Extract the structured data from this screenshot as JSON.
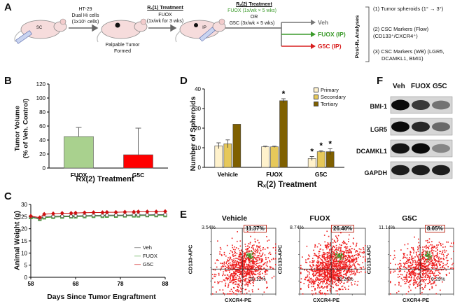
{
  "panels": {
    "a": "A",
    "b": "B",
    "c": "C",
    "d": "D",
    "e": "E",
    "f": "F"
  },
  "panelA": {
    "mouse1_label": "SC",
    "mouse3_label": "IP",
    "cells_line1": "HT-29",
    "cells_line2": "Dual Hi cells",
    "cells_line3": "(1x10⁵ cells)",
    "tumor_line1": "Palpable Tumor",
    "tumor_line2": "Formed",
    "rx1_title": "Rₓ(1) Treatment",
    "rx1_drug": "FUOX",
    "rx1_dose": "(1x/wk for 3 wks)",
    "rx2_title": "Rₓ(2) Treatment",
    "rx2_fuox": "FUOX (1x/wk × 5 wks)",
    "rx2_or": "OR",
    "rx2_g5c": "G5C (3x/wk × 5 wks)",
    "arm_veh": "Veh",
    "arm_fuox": "FUOX (IP)",
    "arm_g5c": "G5C (IP)",
    "post_rx": "Post-Rₓ Analyses",
    "analysis1": "(1) Tumor spheroids (1° → 3°)",
    "analysis2a": "(2) CSC Markers (Flow)",
    "analysis2b": "(CD133⁺/CXCR4⁺)",
    "analysis3a": "(3) CSC Markers (WB) (LGR5,",
    "analysis3b": "DCAMKL1, BMI1)",
    "colors": {
      "green": "#3a9a2a",
      "red": "#d81e1e",
      "gray": "#777777"
    }
  },
  "chart_data": [
    {
      "id": "B",
      "type": "bar",
      "ylabel": "Tumor Volume (% of Veh. Control)",
      "ylabel_line1": "Tumor Volume",
      "ylabel_line2": "(% of Veh. Control)",
      "xlabel": "Rx(2) Treatment",
      "categories": [
        "FUOX",
        "G5C"
      ],
      "values": [
        45,
        19
      ],
      "errors": [
        13,
        38
      ],
      "colors": [
        "#a9d18e",
        "#ff0000"
      ],
      "ylim": [
        0,
        120
      ],
      "yticks": [
        "0",
        "20",
        "40",
        "60",
        "80",
        "100",
        "120"
      ]
    },
    {
      "id": "C",
      "type": "line",
      "ylabel": "Animal Weight   (g)",
      "xlabel": "Days Since Tumor Engraftment",
      "ylim": [
        0,
        30
      ],
      "xlim": [
        58,
        88
      ],
      "yticks": [
        "0",
        "5",
        "10",
        "15",
        "20",
        "25",
        "30"
      ],
      "xticks": [
        "58",
        "68",
        "78",
        "88"
      ],
      "x": [
        58,
        60,
        61,
        63,
        65,
        67,
        68,
        70,
        72,
        74,
        75,
        77,
        79,
        81,
        82,
        84,
        86,
        88
      ],
      "series": [
        {
          "name": "Veh",
          "color": "#555555",
          "marker": "circle",
          "values": [
            25.0,
            24.2,
            25.0,
            25.1,
            25.2,
            25.2,
            25.3,
            25.4,
            25.5,
            25.5,
            25.6,
            25.6,
            25.6,
            25.7,
            25.7,
            25.7,
            25.8,
            25.8
          ]
        },
        {
          "name": "FUOX",
          "color": "#3a9a2a",
          "marker": "square",
          "values": [
            24.7,
            24.0,
            24.6,
            24.8,
            24.9,
            25.0,
            25.0,
            25.1,
            25.2,
            25.2,
            25.3,
            25.3,
            25.4,
            25.4,
            25.4,
            25.5,
            25.5,
            25.5
          ]
        },
        {
          "name": "G5C",
          "color": "#cc1111",
          "marker": "diamond",
          "values": [
            25.2,
            24.6,
            26.0,
            26.2,
            26.4,
            26.4,
            26.5,
            26.6,
            26.7,
            26.7,
            26.8,
            26.8,
            26.9,
            26.9,
            27.0,
            27.0,
            27.0,
            27.1
          ]
        }
      ]
    },
    {
      "id": "D",
      "type": "bar",
      "ylabel": "Number of Spheroids",
      "xlabel": "Rₓ(2) Treatment",
      "categories": [
        "Vehicle",
        "FUOX",
        "G5C"
      ],
      "ylim": [
        0,
        40
      ],
      "yticks": [
        "0",
        "10",
        "20",
        "30",
        "40"
      ],
      "series": [
        {
          "name": "Primary",
          "color": "#fff2cc",
          "values": [
            11,
            10.5,
            4.5
          ],
          "errors": [
            1.5,
            0.3,
            1.0
          ],
          "sig": [
            "",
            "",
            "*"
          ]
        },
        {
          "name": "Secondary",
          "color": "#e6c85a",
          "values": [
            12,
            10.5,
            8
          ],
          "errors": [
            2,
            0.3,
            0.5
          ],
          "sig": [
            "",
            "",
            "*"
          ]
        },
        {
          "name": "Tertiary",
          "color": "#7f6000",
          "values": [
            22,
            34,
            8
          ],
          "errors": [
            0,
            1.0,
            1.5
          ],
          "sig": [
            "",
            "*",
            "*"
          ]
        }
      ]
    }
  ],
  "panelE": {
    "plots": [
      {
        "title": "Vehicle",
        "ul": "3.54%",
        "ur": "11.37%",
        "lr": "26.12%"
      },
      {
        "title": "FUOX",
        "ul": "8.74%",
        "ur": "26.40%",
        "lr": "28.26%"
      },
      {
        "title": "G5C",
        "ul": "11.14%",
        "ur": "8.05%",
        "lr": "9.29%"
      }
    ],
    "ylabel": "CD133-APC",
    "xlabel": "CXCR4-PE"
  },
  "panelF": {
    "lanes": [
      "Veh",
      "FUOX",
      "G5C"
    ],
    "bands": [
      {
        "name": "BMI-1",
        "intensity": [
          1.0,
          0.75,
          0.45
        ]
      },
      {
        "name": "LGR5",
        "intensity": [
          1.0,
          0.85,
          0.5
        ]
      },
      {
        "name": "DCAMKL1",
        "intensity": [
          0.95,
          1.0,
          0.35
        ]
      },
      {
        "name": "GAPDH",
        "intensity": [
          0.9,
          0.9,
          0.9
        ]
      }
    ]
  }
}
